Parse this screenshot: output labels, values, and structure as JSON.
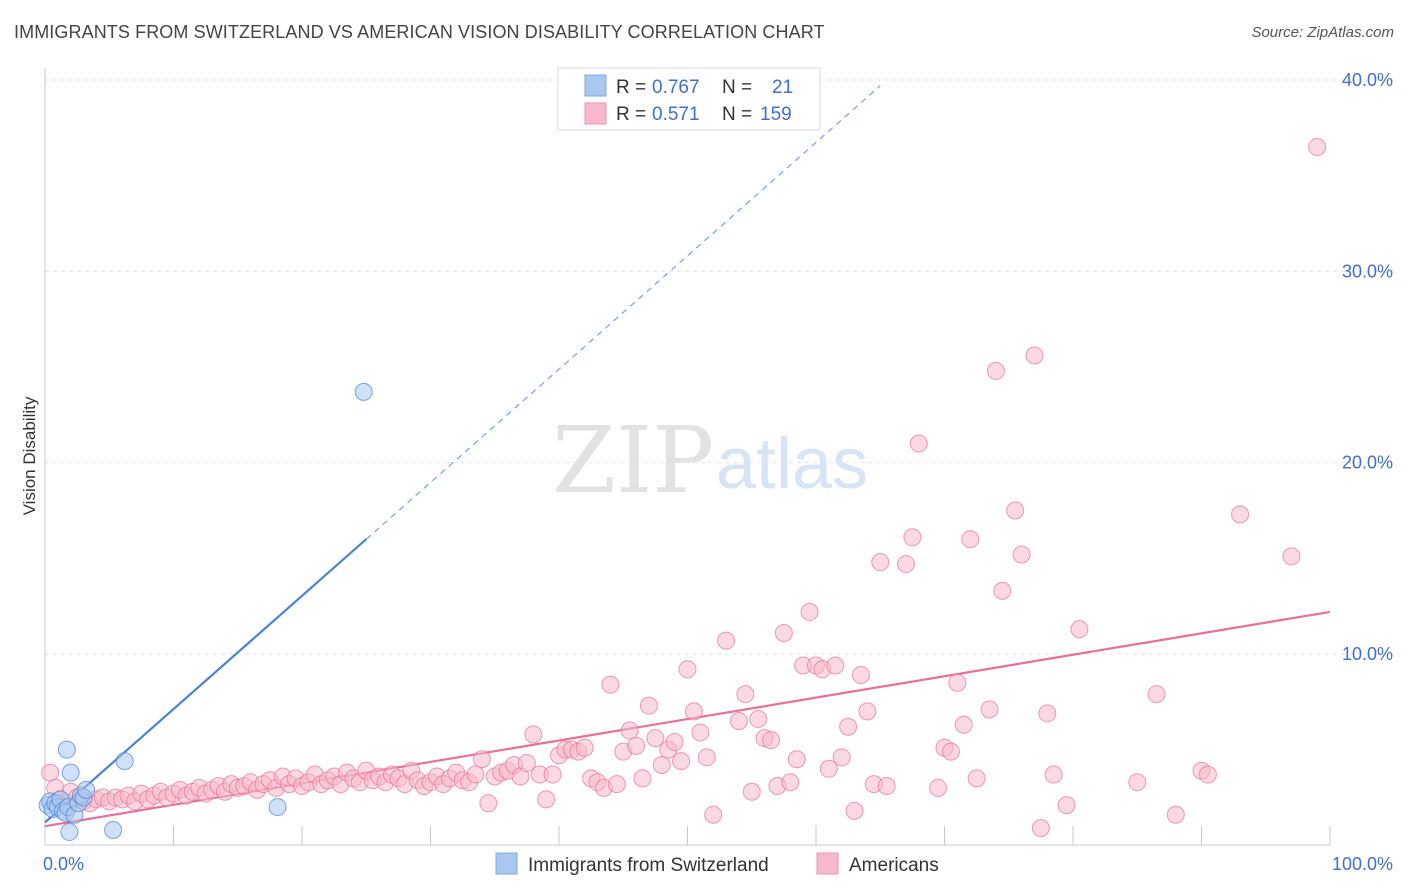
{
  "header": {
    "title": "IMMIGRANTS FROM SWITZERLAND VS AMERICAN VISION DISABILITY CORRELATION CHART",
    "source": "Source: ZipAtlas.com"
  },
  "watermark": {
    "zip": "ZIP",
    "atlas": "atlas"
  },
  "legend_top": {
    "rows": [
      {
        "r_label": "R =",
        "r_value": "0.767",
        "n_label": "N =",
        "n_value": "21",
        "color": "#a9c8f0"
      },
      {
        "r_label": "R =",
        "r_value": "0.571",
        "n_label": "N =",
        "n_value": "159",
        "color": "#f7b9cb"
      }
    ]
  },
  "legend_bottom": {
    "items": [
      {
        "label": "Immigrants from Switzerland",
        "color": "#a9c8f0"
      },
      {
        "label": "Americans",
        "color": "#f7b9cb"
      }
    ]
  },
  "chart_data": {
    "type": "scatter",
    "xlabel": "",
    "ylabel": "Vision Disability",
    "xlim": [
      0,
      100
    ],
    "ylim": [
      0,
      40
    ],
    "x_tick_labels": [
      {
        "value": 0,
        "label": "0.0%"
      },
      {
        "value": 100,
        "label": "100.0%"
      }
    ],
    "y_tick_labels": [
      {
        "value": 10,
        "label": "10.0%"
      },
      {
        "value": 20,
        "label": "20.0%"
      },
      {
        "value": 30,
        "label": "30.0%"
      },
      {
        "value": 40,
        "label": "40.0%"
      }
    ],
    "grid": true,
    "legend_position": "top-center",
    "series": [
      {
        "name": "Immigrants from Switzerland",
        "color": "#4a82d6",
        "fill": "#a9c8f0",
        "points": [
          [
            0.2,
            2.1
          ],
          [
            0.4,
            2.3
          ],
          [
            0.6,
            1.9
          ],
          [
            0.8,
            2.2
          ],
          [
            1.0,
            2.0
          ],
          [
            1.2,
            2.4
          ],
          [
            1.4,
            1.8
          ],
          [
            1.6,
            1.7
          ],
          [
            1.8,
            2.0
          ],
          [
            2.0,
            3.8
          ],
          [
            1.7,
            5.0
          ],
          [
            1.9,
            0.7
          ],
          [
            2.3,
            1.6
          ],
          [
            2.6,
            2.2
          ],
          [
            2.8,
            2.6
          ],
          [
            3.0,
            2.5
          ],
          [
            3.2,
            2.9
          ],
          [
            5.3,
            0.8
          ],
          [
            6.2,
            4.4
          ],
          [
            18.1,
            2.0
          ],
          [
            24.8,
            23.7
          ]
        ],
        "trend": {
          "x0": 0.0,
          "y0": 1.2,
          "x1": 25.0,
          "y1": 16.0,
          "dash_to_x": 65.0,
          "dash_to_y": 39.7
        }
      },
      {
        "name": "Americans",
        "color": "#e8709a",
        "fill": "#f7b9cb",
        "points": [
          [
            0.4,
            3.8
          ],
          [
            0.8,
            3.0
          ],
          [
            1.2,
            2.4
          ],
          [
            1.6,
            2.2
          ],
          [
            2.0,
            2.8
          ],
          [
            2.5,
            2.5
          ],
          [
            3.0,
            2.3
          ],
          [
            3.5,
            2.2
          ],
          [
            4.0,
            2.4
          ],
          [
            4.5,
            2.5
          ],
          [
            5.0,
            2.3
          ],
          [
            5.5,
            2.5
          ],
          [
            6.0,
            2.4
          ],
          [
            6.5,
            2.6
          ],
          [
            7.0,
            2.3
          ],
          [
            7.5,
            2.7
          ],
          [
            8.0,
            2.4
          ],
          [
            8.5,
            2.6
          ],
          [
            9.0,
            2.8
          ],
          [
            9.5,
            2.5
          ],
          [
            10.0,
            2.7
          ],
          [
            10.5,
            2.9
          ],
          [
            11.0,
            2.6
          ],
          [
            11.5,
            2.8
          ],
          [
            12.0,
            3.0
          ],
          [
            12.5,
            2.7
          ],
          [
            13.0,
            2.9
          ],
          [
            13.5,
            3.1
          ],
          [
            14.0,
            2.8
          ],
          [
            14.5,
            3.2
          ],
          [
            15.0,
            3.0
          ],
          [
            15.5,
            3.1
          ],
          [
            16.0,
            3.3
          ],
          [
            16.5,
            2.9
          ],
          [
            17.0,
            3.2
          ],
          [
            17.5,
            3.4
          ],
          [
            18.0,
            3.0
          ],
          [
            18.5,
            3.6
          ],
          [
            19.0,
            3.2
          ],
          [
            19.5,
            3.5
          ],
          [
            20.0,
            3.1
          ],
          [
            20.5,
            3.3
          ],
          [
            21.0,
            3.7
          ],
          [
            21.5,
            3.2
          ],
          [
            22.0,
            3.4
          ],
          [
            22.5,
            3.6
          ],
          [
            23.0,
            3.2
          ],
          [
            23.5,
            3.8
          ],
          [
            24.0,
            3.5
          ],
          [
            24.5,
            3.3
          ],
          [
            25.0,
            3.9
          ],
          [
            25.5,
            3.4
          ],
          [
            26.0,
            3.6
          ],
          [
            26.5,
            3.3
          ],
          [
            27.0,
            3.7
          ],
          [
            27.5,
            3.5
          ],
          [
            28.0,
            3.2
          ],
          [
            28.5,
            3.9
          ],
          [
            29.0,
            3.4
          ],
          [
            29.5,
            3.1
          ],
          [
            30.0,
            3.3
          ],
          [
            30.5,
            3.6
          ],
          [
            31.0,
            3.2
          ],
          [
            31.5,
            3.5
          ],
          [
            32.0,
            3.8
          ],
          [
            32.5,
            3.4
          ],
          [
            33.0,
            3.3
          ],
          [
            33.5,
            3.7
          ],
          [
            34.0,
            4.5
          ],
          [
            34.5,
            2.2
          ],
          [
            35.0,
            3.6
          ],
          [
            35.5,
            3.8
          ],
          [
            36.0,
            3.9
          ],
          [
            36.5,
            4.2
          ],
          [
            37.0,
            3.6
          ],
          [
            37.5,
            4.3
          ],
          [
            38.0,
            5.8
          ],
          [
            38.5,
            3.7
          ],
          [
            39.0,
            2.4
          ],
          [
            39.5,
            3.7
          ],
          [
            40.0,
            4.7
          ],
          [
            40.5,
            5.0
          ],
          [
            41.0,
            5.0
          ],
          [
            41.5,
            4.9
          ],
          [
            42.0,
            5.1
          ],
          [
            42.5,
            3.5
          ],
          [
            43.0,
            3.3
          ],
          [
            43.5,
            3.0
          ],
          [
            44.0,
            8.4
          ],
          [
            44.5,
            3.2
          ],
          [
            45.0,
            4.9
          ],
          [
            45.5,
            6.0
          ],
          [
            46.0,
            5.2
          ],
          [
            46.5,
            3.5
          ],
          [
            47.0,
            7.3
          ],
          [
            47.5,
            5.6
          ],
          [
            48.0,
            4.2
          ],
          [
            48.5,
            5.0
          ],
          [
            49.0,
            5.4
          ],
          [
            49.5,
            4.4
          ],
          [
            50.0,
            9.2
          ],
          [
            50.5,
            7.0
          ],
          [
            51.0,
            5.9
          ],
          [
            51.5,
            4.6
          ],
          [
            52.0,
            1.6
          ],
          [
            53.0,
            10.7
          ],
          [
            54.0,
            6.5
          ],
          [
            54.5,
            7.9
          ],
          [
            55.0,
            2.8
          ],
          [
            55.5,
            6.6
          ],
          [
            56.0,
            5.6
          ],
          [
            56.5,
            5.5
          ],
          [
            57.0,
            3.1
          ],
          [
            57.5,
            11.1
          ],
          [
            58.0,
            3.3
          ],
          [
            58.5,
            4.5
          ],
          [
            59.0,
            9.4
          ],
          [
            59.5,
            12.2
          ],
          [
            60.0,
            9.4
          ],
          [
            60.5,
            9.2
          ],
          [
            61.0,
            4.0
          ],
          [
            61.5,
            9.4
          ],
          [
            62.0,
            4.6
          ],
          [
            62.5,
            6.2
          ],
          [
            63.0,
            1.8
          ],
          [
            63.5,
            8.9
          ],
          [
            64.0,
            7.0
          ],
          [
            64.5,
            3.2
          ],
          [
            65.0,
            14.8
          ],
          [
            67.0,
            14.7
          ],
          [
            67.5,
            16.1
          ],
          [
            68.0,
            21.0
          ],
          [
            69.5,
            3.0
          ],
          [
            70.0,
            5.1
          ],
          [
            70.5,
            4.9
          ],
          [
            71.0,
            8.5
          ],
          [
            71.5,
            6.3
          ],
          [
            72.0,
            16.0
          ],
          [
            72.5,
            3.5
          ],
          [
            73.5,
            7.1
          ],
          [
            74.0,
            24.8
          ],
          [
            74.5,
            13.3
          ],
          [
            75.5,
            17.5
          ],
          [
            76.0,
            15.2
          ],
          [
            77.0,
            25.6
          ],
          [
            77.5,
            0.9
          ],
          [
            78.0,
            6.9
          ],
          [
            78.5,
            3.7
          ],
          [
            79.5,
            2.1
          ],
          [
            80.5,
            11.3
          ],
          [
            85.0,
            3.3
          ],
          [
            86.5,
            7.9
          ],
          [
            88.0,
            1.6
          ],
          [
            90.0,
            3.9
          ],
          [
            90.5,
            3.7
          ],
          [
            93.0,
            17.3
          ],
          [
            97.0,
            15.1
          ],
          [
            99.0,
            36.5
          ],
          [
            65.5,
            3.1
          ]
        ],
        "trend": {
          "x0": 0.0,
          "y0": 1.0,
          "x1": 100.0,
          "y1": 12.2
        }
      }
    ]
  }
}
